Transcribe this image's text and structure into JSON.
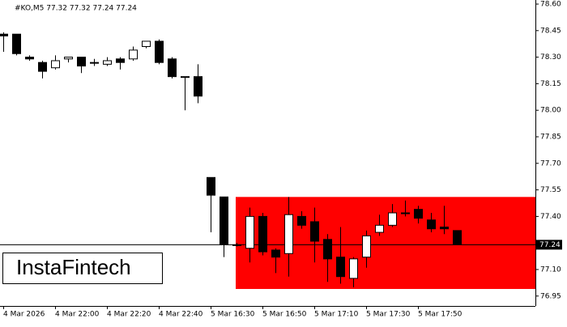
{
  "chart_data": {
    "type": "candlestick",
    "title": "#KO,M5  77.32 77.32 77.24 77.24",
    "watermark": "InstaFintech",
    "categories": [
      "4 Mar 2026",
      null,
      null,
      null,
      "4 Mar 22:00",
      null,
      null,
      null,
      "4 Mar 22:20",
      null,
      null,
      null,
      "4 Mar 22:40",
      null,
      null,
      null,
      "5 Mar 16:30",
      null,
      null,
      null,
      "5 Mar 16:50",
      null,
      null,
      null,
      "5 Mar 17:10",
      null,
      null,
      null,
      "5 Mar 17:30",
      null,
      null,
      null,
      "5 Mar 17:50",
      null,
      null,
      null
    ],
    "open": [
      78.43,
      78.43,
      78.3,
      78.27,
      78.24,
      78.29,
      78.3,
      78.27,
      78.26,
      78.29,
      78.29,
      78.36,
      78.39,
      78.29,
      78.19,
      78.19,
      77.62,
      77.51,
      77.24,
      77.22,
      77.4,
      77.21,
      77.19,
      77.4,
      77.37,
      77.27,
      77.17,
      77.05,
      77.17,
      77.31,
      77.35,
      77.42,
      77.44,
      77.38,
      77.34,
      77.32
    ],
    "high": [
      78.44,
      78.43,
      78.31,
      78.28,
      78.31,
      78.3,
      78.3,
      78.29,
      78.3,
      78.3,
      78.36,
      78.39,
      78.4,
      78.3,
      78.19,
      78.26,
      77.62,
      77.51,
      77.25,
      77.45,
      77.42,
      77.22,
      77.51,
      77.43,
      77.45,
      77.3,
      77.34,
      77.17,
      77.32,
      77.41,
      77.47,
      77.49,
      77.46,
      77.42,
      77.46,
      77.32
    ],
    "low": [
      78.33,
      78.31,
      78.28,
      78.18,
      78.23,
      78.27,
      78.21,
      78.25,
      78.25,
      78.23,
      78.28,
      78.35,
      78.26,
      78.18,
      78.0,
      78.04,
      77.31,
      77.17,
      77.23,
      77.14,
      77.18,
      77.08,
      77.06,
      77.33,
      77.14,
      77.03,
      77.02,
      77.0,
      77.11,
      77.29,
      77.34,
      77.4,
      77.36,
      77.31,
      77.3,
      77.24
    ],
    "close": [
      78.42,
      78.32,
      78.29,
      78.22,
      78.28,
      78.3,
      78.25,
      78.27,
      78.28,
      78.27,
      78.34,
      78.39,
      78.27,
      78.19,
      78.19,
      78.08,
      77.52,
      77.24,
      77.24,
      77.4,
      77.2,
      77.17,
      77.41,
      77.35,
      77.26,
      77.16,
      77.06,
      77.16,
      77.29,
      77.35,
      77.42,
      77.42,
      77.39,
      77.33,
      77.33,
      77.24
    ],
    "up_color": "#ffffff",
    "down_color": "#000000",
    "zone": {
      "ylim": [
        76.99,
        77.51
      ],
      "start": 18,
      "color": "#ff0000"
    },
    "price_line": 77.24,
    "ylim": [
      76.894,
      78.623
    ],
    "yticks": [
      {
        "value": 78.6,
        "label": "78.60"
      },
      78.45,
      {
        "value": 78.3,
        "label": "78.30"
      },
      78.15,
      {
        "value": 78.0,
        "label": "78.00"
      },
      77.85,
      {
        "value": 77.7,
        "label": "77.70"
      },
      77.55,
      {
        "value": 77.4,
        "label": "77.40"
      },
      {
        "value": 77.1,
        "label": "77.10"
      },
      76.95
    ]
  }
}
